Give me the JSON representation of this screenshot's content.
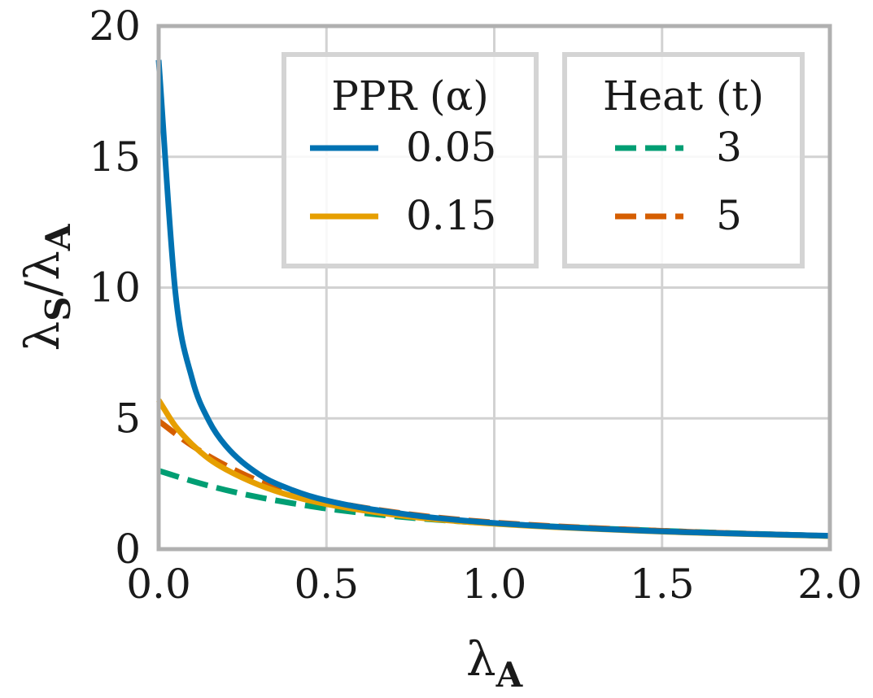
{
  "chart_data": {
    "type": "line",
    "title": "",
    "xlabel": {
      "base": "λ",
      "sub": "A"
    },
    "ylabel": {
      "num_base": "λ",
      "num_sub": "S",
      "slash": "/",
      "den_base": "λ",
      "den_sub": "A"
    },
    "xlim": [
      0,
      2.0
    ],
    "ylim": [
      0,
      20
    ],
    "xticks": [
      0,
      0.5,
      1.0,
      1.5,
      2.0
    ],
    "xtick_labels": [
      "0.0",
      "0.5",
      "1.0",
      "1.5",
      "2.0"
    ],
    "yticks": [
      0,
      5,
      10,
      15,
      20
    ],
    "ytick_labels": [
      "0",
      "5",
      "10",
      "15",
      "20"
    ],
    "grid": true,
    "legend_placement": "upper-right",
    "legend_groups": [
      {
        "title": "PPR (α)",
        "entries": [
          0,
          1
        ]
      },
      {
        "title": "Heat (t)",
        "entries": [
          2,
          3
        ]
      }
    ],
    "series": [
      {
        "name": "0.05",
        "group": "PPR",
        "param": 0.05,
        "color": "#0072b2",
        "dash": "solid",
        "x": [
          0.0,
          0.05,
          0.1,
          0.15,
          0.2,
          0.3,
          0.4,
          0.5,
          0.75,
          1.0,
          1.5,
          2.0
        ],
        "y": [
          18.7,
          9.8,
          6.5,
          4.9,
          3.95,
          2.85,
          2.25,
          1.86,
          1.31,
          1.0,
          0.68,
          0.51
        ]
      },
      {
        "name": "0.15",
        "group": "PPR",
        "param": 0.15,
        "color": "#e69f00",
        "dash": "solid",
        "x": [
          0.0,
          0.05,
          0.1,
          0.15,
          0.2,
          0.3,
          0.4,
          0.5,
          0.75,
          1.0,
          1.5,
          2.0
        ],
        "y": [
          5.7,
          4.7,
          4.0,
          3.45,
          3.05,
          2.45,
          2.02,
          1.72,
          1.24,
          0.97,
          0.67,
          0.5
        ]
      },
      {
        "name": "3",
        "group": "Heat",
        "param": 3,
        "color": "#009e73",
        "dash": "dashed",
        "x": [
          0.0,
          0.1,
          0.2,
          0.3,
          0.4,
          0.5,
          0.75,
          1.0,
          1.5,
          2.0
        ],
        "y": [
          3.0,
          2.6,
          2.26,
          1.98,
          1.75,
          1.55,
          1.2,
          0.98,
          0.7,
          0.5
        ]
      },
      {
        "name": "5",
        "group": "Heat",
        "param": 5,
        "color": "#d55e00",
        "dash": "dashed",
        "x": [
          0.0,
          0.1,
          0.2,
          0.3,
          0.4,
          0.5,
          0.75,
          1.0,
          1.5,
          2.0
        ],
        "y": [
          4.9,
          3.95,
          3.2,
          2.6,
          2.18,
          1.85,
          1.33,
          1.02,
          0.7,
          0.5
        ]
      }
    ]
  }
}
